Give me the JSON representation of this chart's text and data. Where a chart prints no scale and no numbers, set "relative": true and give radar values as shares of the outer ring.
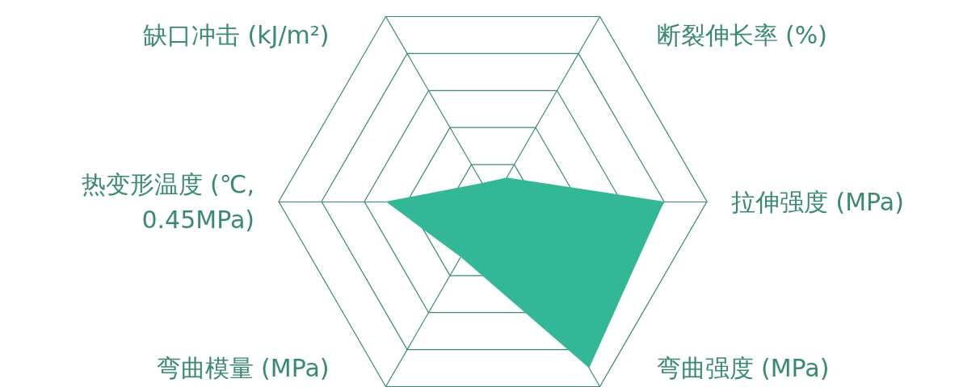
{
  "chart_data": {
    "type": "radar",
    "relative": true,
    "categories": [
      "断裂伸长率 (%)",
      "拉伸强度 (MPa)",
      "弯曲强度 (MPa)",
      "弯曲模量 (MPa)",
      "热变形温度 (℃, 0.45MPa)",
      "缺口冲击 (kJ/m²)"
    ],
    "series": [
      {
        "color": "#33b897",
        "values": [
          0.13,
          0.8,
          0.9,
          0.3,
          0.5,
          0.1
        ]
      }
    ]
  }
}
